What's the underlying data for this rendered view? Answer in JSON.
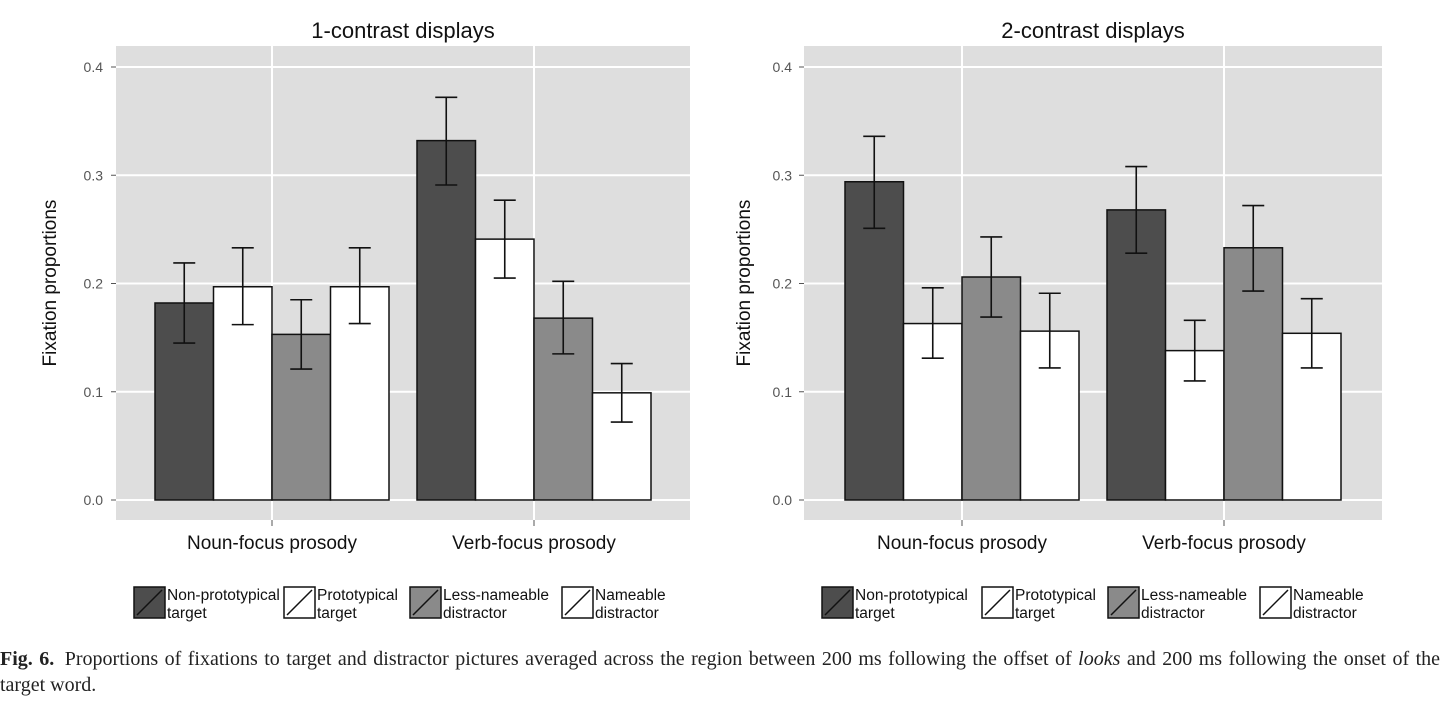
{
  "chart_data": [
    {
      "type": "bar",
      "title": "1-contrast displays",
      "ylabel": "Fixation proportions",
      "xlabel": "",
      "ylim": [
        0.0,
        0.4
      ],
      "yticks": [
        "0.0",
        "0.1",
        "0.2",
        "0.3",
        "0.4"
      ],
      "yticks_values": [
        0.0,
        0.1,
        0.2,
        0.3,
        0.4
      ],
      "grid": true,
      "error_bars": true,
      "categories": [
        "Noun-focus prosody",
        "Verb-focus prosody"
      ],
      "series": [
        {
          "name": "Non-prototypical target",
          "values": [
            0.182,
            0.332
          ],
          "err_low": [
            0.145,
            0.291
          ],
          "err_high": [
            0.219,
            0.372
          ]
        },
        {
          "name": "Prototypical target",
          "values": [
            0.197,
            0.241
          ],
          "err_low": [
            0.162,
            0.205
          ],
          "err_high": [
            0.233,
            0.277
          ]
        },
        {
          "name": "Less-nameable distractor",
          "values": [
            0.153,
            0.168
          ],
          "err_low": [
            0.121,
            0.135
          ],
          "err_high": [
            0.185,
            0.202
          ]
        },
        {
          "name": "Nameable distractor",
          "values": [
            0.197,
            0.099
          ],
          "err_low": [
            0.163,
            0.072
          ],
          "err_high": [
            0.233,
            0.126
          ]
        }
      ]
    },
    {
      "type": "bar",
      "title": "2-contrast displays",
      "ylabel": "Fixation proportions",
      "xlabel": "",
      "ylim": [
        0.0,
        0.4
      ],
      "yticks": [
        "0.0",
        "0.1",
        "0.2",
        "0.3",
        "0.4"
      ],
      "yticks_values": [
        0.0,
        0.1,
        0.2,
        0.3,
        0.4
      ],
      "grid": true,
      "error_bars": true,
      "categories": [
        "Noun-focus prosody",
        "Verb-focus prosody"
      ],
      "series": [
        {
          "name": "Non-prototypical target",
          "values": [
            0.294,
            0.268
          ],
          "err_low": [
            0.251,
            0.228
          ],
          "err_high": [
            0.336,
            0.308
          ]
        },
        {
          "name": "Prototypical target",
          "values": [
            0.163,
            0.138
          ],
          "err_low": [
            0.131,
            0.11
          ],
          "err_high": [
            0.196,
            0.166
          ]
        },
        {
          "name": "Less-nameable distractor",
          "values": [
            0.206,
            0.233
          ],
          "err_low": [
            0.169,
            0.193
          ],
          "err_high": [
            0.243,
            0.272
          ]
        },
        {
          "name": "Nameable distractor",
          "values": [
            0.156,
            0.154
          ],
          "err_low": [
            0.122,
            0.122
          ],
          "err_high": [
            0.191,
            0.186
          ]
        }
      ]
    }
  ],
  "legend_entries": [
    {
      "line1": "Non-prototypical",
      "line2": "target",
      "color": "#4d4d4d"
    },
    {
      "line1": "Prototypical",
      "line2": "target",
      "color": "#ffffff"
    },
    {
      "line1": "Less-nameable",
      "line2": "distractor",
      "color": "#8a8a8a"
    },
    {
      "line1": "Nameable",
      "line2": "distractor",
      "color": "#ffffff"
    }
  ],
  "colors": {
    "panel_bg": "#dedede",
    "grid": "#ffffff",
    "bar_outline": "#111111",
    "series": [
      "#4d4d4d",
      "#ffffff",
      "#8a8a8a",
      "#ffffff"
    ]
  },
  "caption": {
    "label": "Fig. 6.",
    "text_before": "Proportions of fixations to target and distractor pictures averaged across the region between 200 ms following the offset of",
    "italic": "looks",
    "text_after": "and 200 ms following the onset of the target word."
  }
}
